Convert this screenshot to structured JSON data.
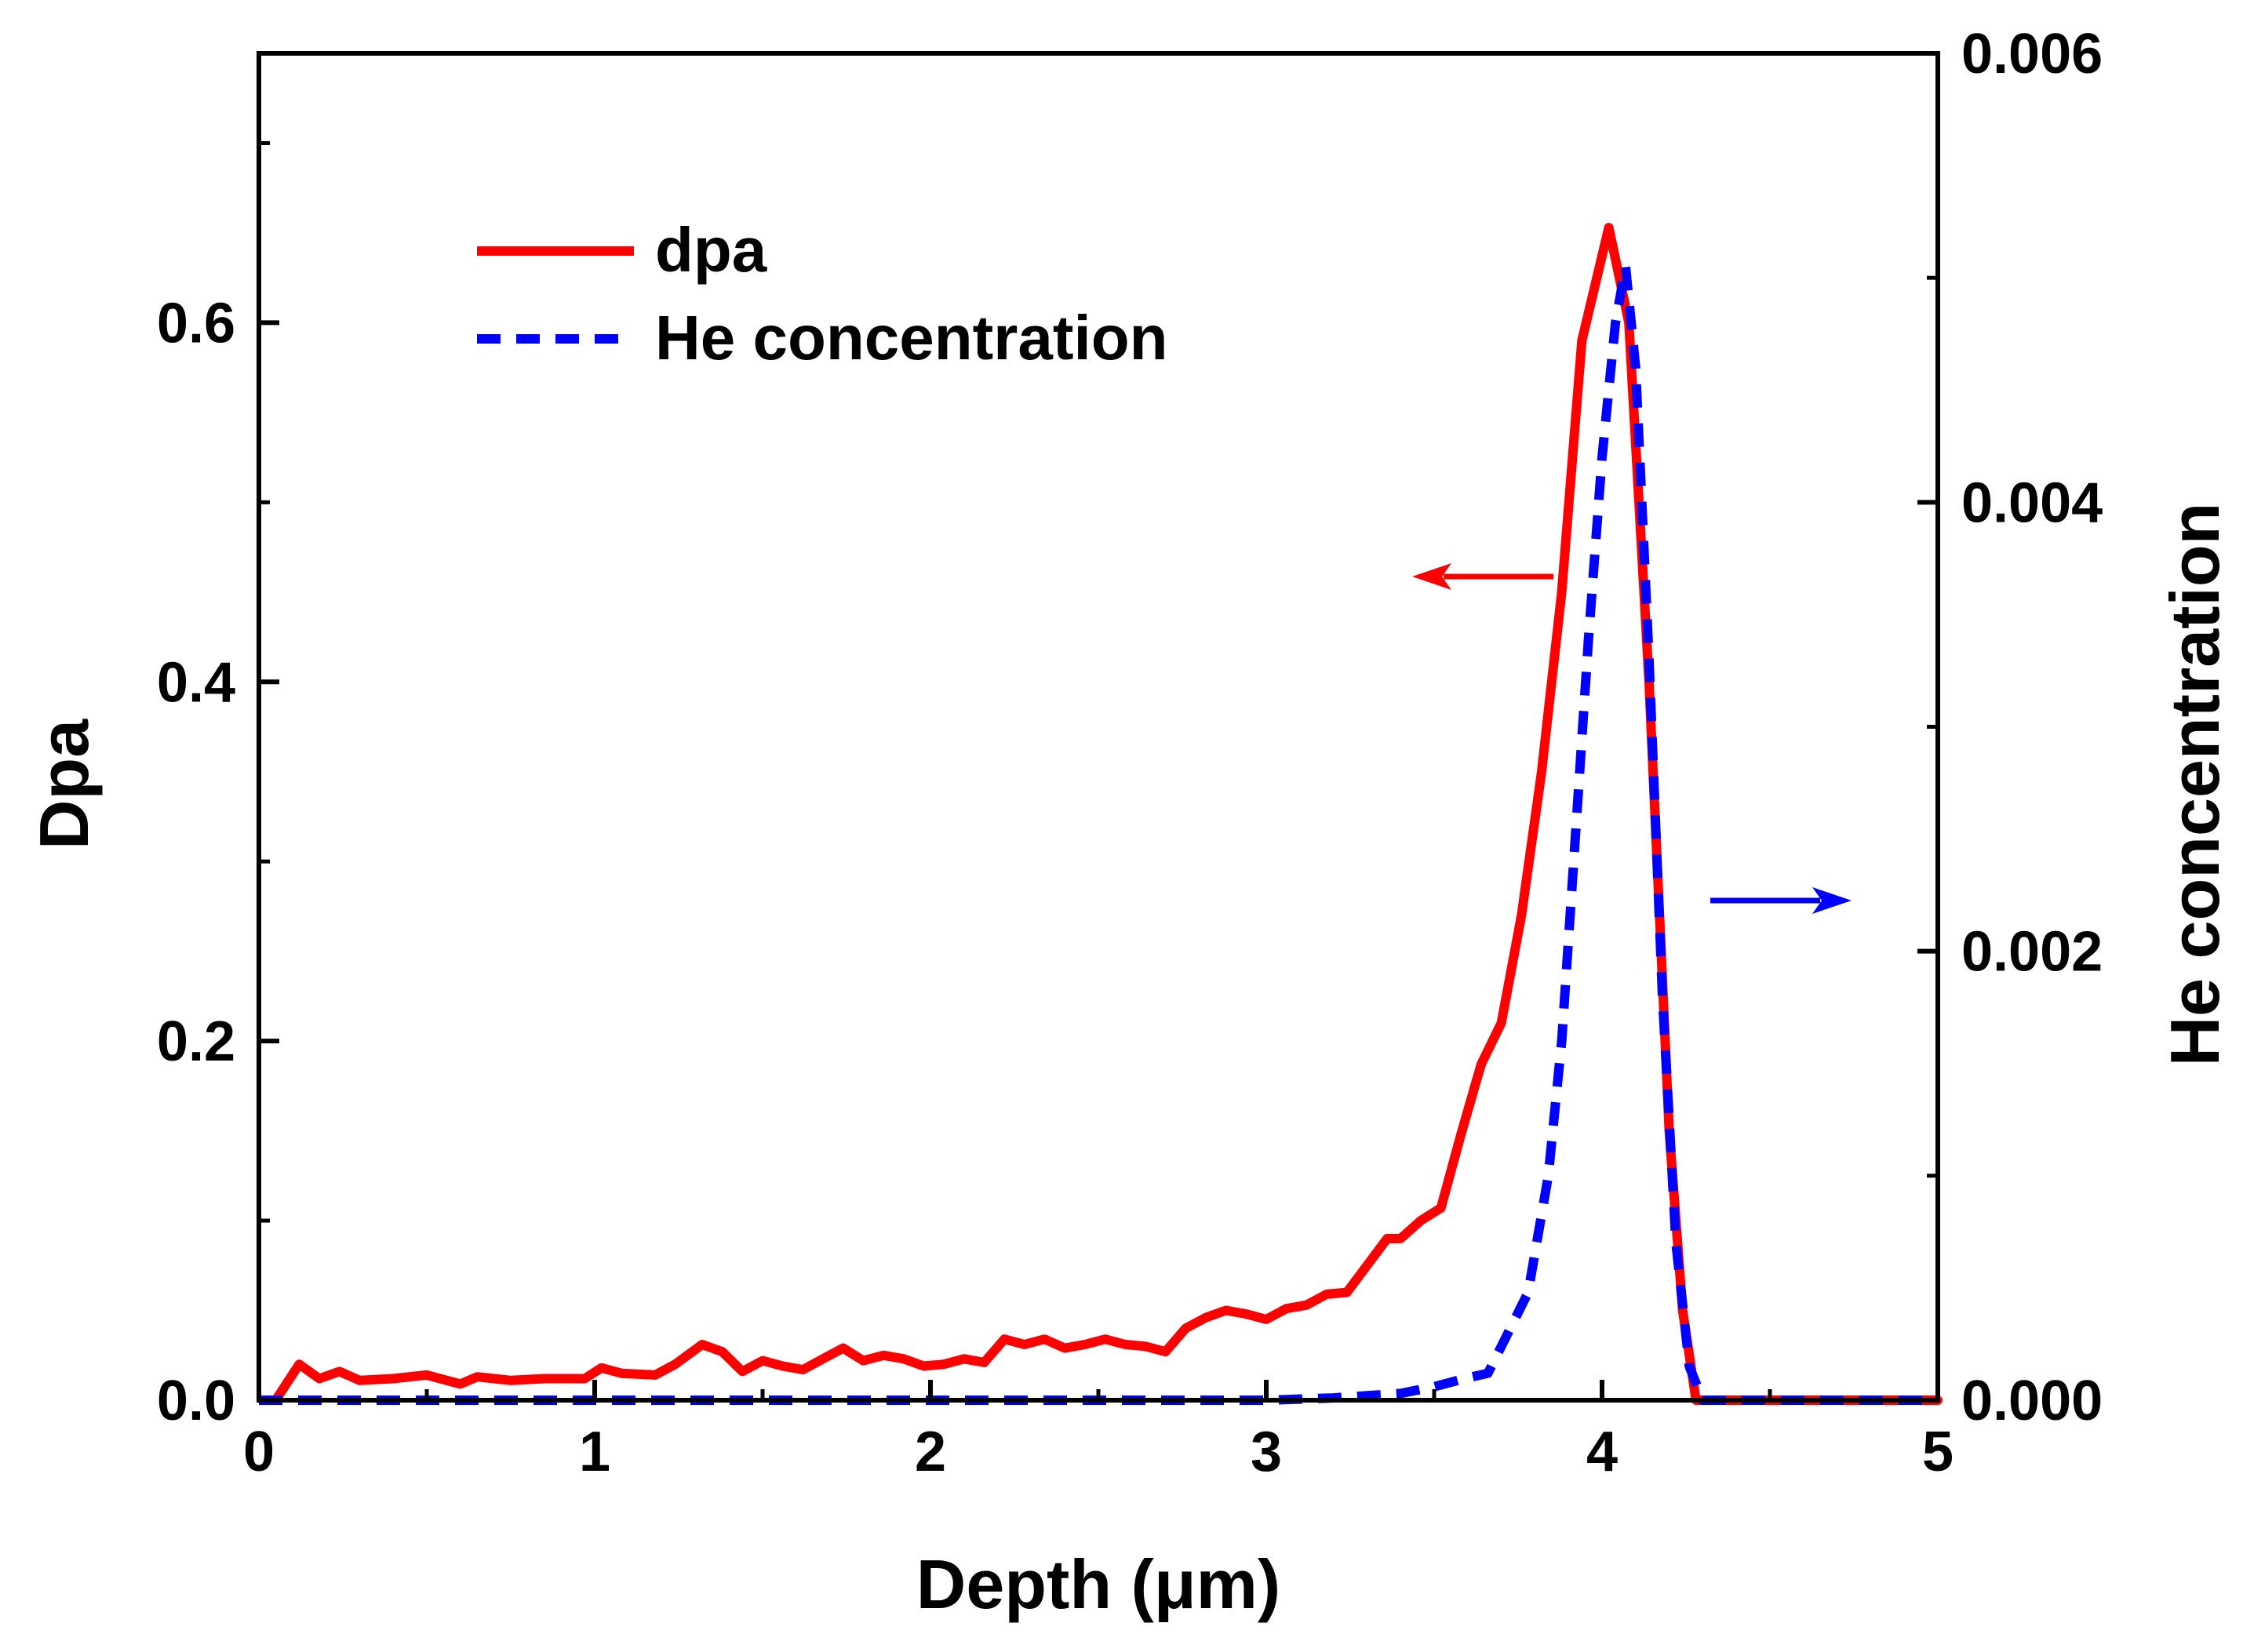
{
  "chart_data": {
    "type": "line",
    "title": "",
    "xlabel": "Depth (μm)",
    "ylabel": "Dpa",
    "y2label": "He concentration",
    "xlim": [
      0,
      5
    ],
    "ylim": [
      0,
      0.75
    ],
    "y2lim": [
      0,
      0.006
    ],
    "x_ticks": [
      "0",
      "1",
      "2",
      "3",
      "4",
      "5"
    ],
    "y_ticks": [
      "0.0",
      "0.2",
      "0.4",
      "0.6"
    ],
    "y2_ticks": [
      "0.000",
      "0.002",
      "0.004",
      "0.006"
    ],
    "legend": {
      "position": "top-left"
    },
    "annotations": [
      {
        "type": "arrow",
        "direction": "left",
        "color": "#ff0000",
        "axis": "left"
      },
      {
        "type": "arrow",
        "direction": "right",
        "color": "#0000ff",
        "axis": "right"
      }
    ],
    "series": [
      {
        "name": "dpa",
        "axis": "left",
        "color": "#ff0000",
        "style": "solid",
        "points": [
          [
            0.05,
            0.0
          ],
          [
            0.12,
            0.02
          ],
          [
            0.18,
            0.012
          ],
          [
            0.24,
            0.016
          ],
          [
            0.3,
            0.011
          ],
          [
            0.4,
            0.012
          ],
          [
            0.5,
            0.014
          ],
          [
            0.6,
            0.009
          ],
          [
            0.65,
            0.013
          ],
          [
            0.75,
            0.011
          ],
          [
            0.85,
            0.012
          ],
          [
            0.97,
            0.012
          ],
          [
            1.02,
            0.018
          ],
          [
            1.08,
            0.015
          ],
          [
            1.18,
            0.014
          ],
          [
            1.24,
            0.02
          ],
          [
            1.32,
            0.031
          ],
          [
            1.38,
            0.027
          ],
          [
            1.44,
            0.016
          ],
          [
            1.5,
            0.022
          ],
          [
            1.56,
            0.019
          ],
          [
            1.62,
            0.017
          ],
          [
            1.68,
            0.023
          ],
          [
            1.74,
            0.029
          ],
          [
            1.8,
            0.022
          ],
          [
            1.86,
            0.025
          ],
          [
            1.92,
            0.023
          ],
          [
            1.98,
            0.019
          ],
          [
            2.04,
            0.02
          ],
          [
            2.1,
            0.023
          ],
          [
            2.16,
            0.021
          ],
          [
            2.22,
            0.034
          ],
          [
            2.28,
            0.031
          ],
          [
            2.34,
            0.034
          ],
          [
            2.4,
            0.029
          ],
          [
            2.46,
            0.031
          ],
          [
            2.52,
            0.034
          ],
          [
            2.58,
            0.031
          ],
          [
            2.64,
            0.03
          ],
          [
            2.7,
            0.027
          ],
          [
            2.76,
            0.04
          ],
          [
            2.82,
            0.046
          ],
          [
            2.88,
            0.05
          ],
          [
            2.94,
            0.048
          ],
          [
            3.0,
            0.045
          ],
          [
            3.06,
            0.051
          ],
          [
            3.12,
            0.053
          ],
          [
            3.18,
            0.059
          ],
          [
            3.24,
            0.06
          ],
          [
            3.3,
            0.075
          ],
          [
            3.36,
            0.09
          ],
          [
            3.4,
            0.09
          ],
          [
            3.46,
            0.1
          ],
          [
            3.52,
            0.107
          ],
          [
            3.58,
            0.148
          ],
          [
            3.64,
            0.187
          ],
          [
            3.7,
            0.21
          ],
          [
            3.76,
            0.27
          ],
          [
            3.82,
            0.35
          ],
          [
            3.88,
            0.45
          ],
          [
            3.94,
            0.59
          ],
          [
            4.02,
            0.653
          ],
          [
            4.08,
            0.6
          ],
          [
            4.14,
            0.4
          ],
          [
            4.2,
            0.15
          ],
          [
            4.24,
            0.05
          ],
          [
            4.28,
            0.0
          ],
          [
            5.0,
            0.0
          ]
        ]
      },
      {
        "name": "He concentration",
        "axis": "right",
        "color": "#0000ff",
        "style": "dashed",
        "points": [
          [
            0.0,
            0.0
          ],
          [
            3.0,
            0.0
          ],
          [
            3.2,
            1e-05
          ],
          [
            3.4,
            3e-05
          ],
          [
            3.5,
            6e-05
          ],
          [
            3.6,
            0.0001
          ],
          [
            3.66,
            0.00012
          ],
          [
            3.72,
            0.0003
          ],
          [
            3.78,
            0.00048
          ],
          [
            3.84,
            0.001
          ],
          [
            3.88,
            0.0016
          ],
          [
            3.92,
            0.0025
          ],
          [
            3.96,
            0.0034
          ],
          [
            4.0,
            0.0042
          ],
          [
            4.04,
            0.0048
          ],
          [
            4.07,
            0.00505
          ],
          [
            4.1,
            0.0046
          ],
          [
            4.14,
            0.0033
          ],
          [
            4.18,
            0.0018
          ],
          [
            4.22,
            0.0007
          ],
          [
            4.26,
            0.00015
          ],
          [
            4.3,
            0.0
          ],
          [
            5.0,
            0.0
          ]
        ]
      }
    ]
  }
}
